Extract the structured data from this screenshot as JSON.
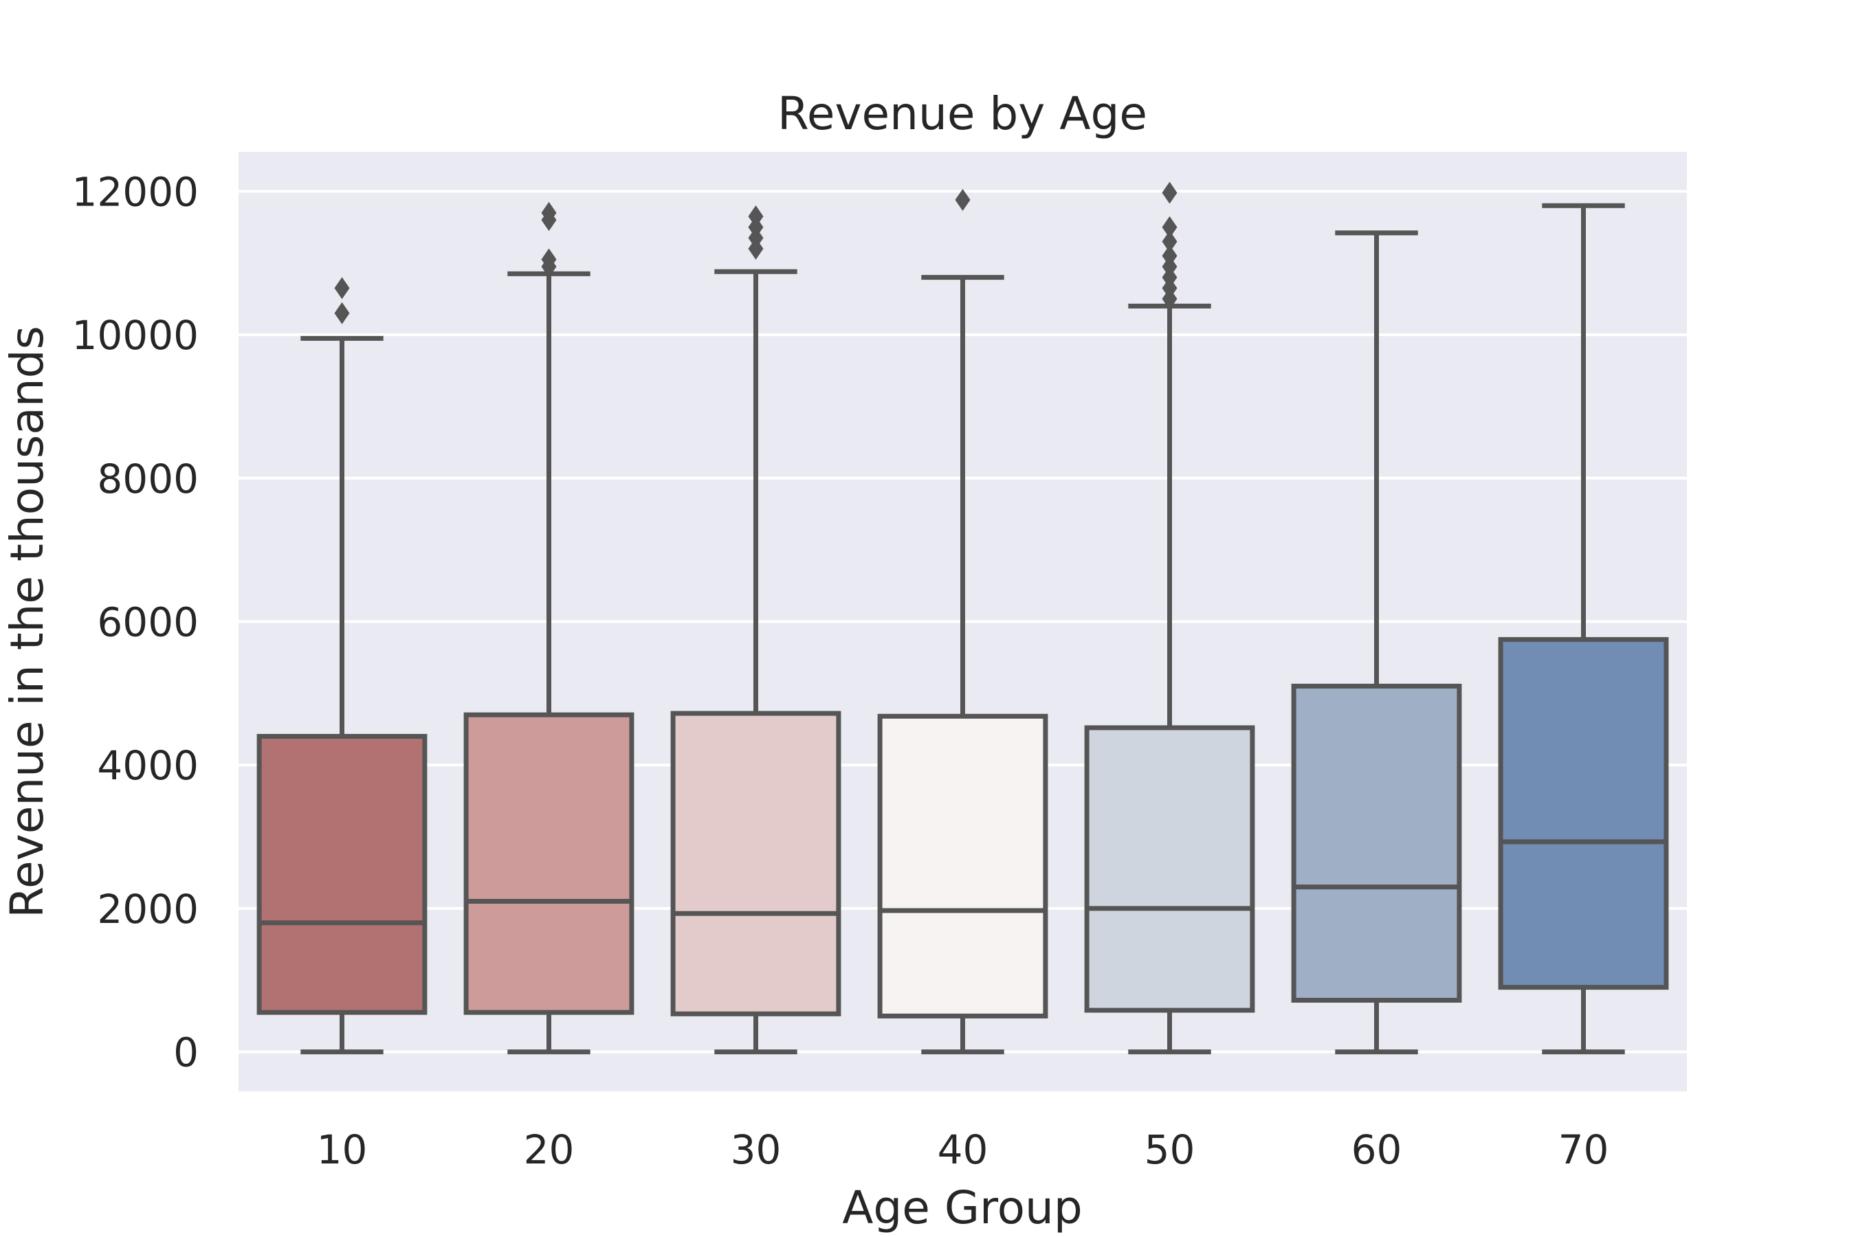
{
  "chart_data": {
    "type": "box",
    "title": "Revenue by Age",
    "xlabel": "Age Group",
    "ylabel": "Revenue in the thousands",
    "ylim": [
      -550,
      12550
    ],
    "yticks": [
      0,
      2000,
      4000,
      6000,
      8000,
      10000,
      12000
    ],
    "grid": true,
    "legend": "none",
    "colors": {
      "plot_background": "#eaeaf2",
      "grid": "#ffffff",
      "box_edge": "#555555",
      "text": "#262626"
    },
    "categories": [
      "10",
      "20",
      "30",
      "40",
      "50",
      "60",
      "70"
    ],
    "boxes": [
      {
        "category": "10",
        "whisker_low": 0,
        "q1": 550,
        "median": 1800,
        "q3": 4400,
        "whisker_high": 9950,
        "outliers": [
          10300,
          10650
        ],
        "color": "#b27271"
      },
      {
        "category": "20",
        "whisker_low": 0,
        "q1": 550,
        "median": 2100,
        "q3": 4700,
        "whisker_high": 10850,
        "outliers": [
          10950,
          11050,
          11600,
          11700
        ],
        "color": "#cd9c9a"
      },
      {
        "category": "30",
        "whisker_low": 0,
        "q1": 530,
        "median": 1930,
        "q3": 4720,
        "whisker_high": 10880,
        "outliers": [
          11200,
          11350,
          11500,
          11650
        ],
        "color": "#e4cbcb"
      },
      {
        "category": "40",
        "whisker_low": 0,
        "q1": 500,
        "median": 1970,
        "q3": 4680,
        "whisker_high": 10800,
        "outliers": [
          11880
        ],
        "color": "#f7f3f3"
      },
      {
        "category": "50",
        "whisker_low": 0,
        "q1": 580,
        "median": 2000,
        "q3": 4520,
        "whisker_high": 10400,
        "outliers": [
          10500,
          10650,
          10800,
          10950,
          11100,
          11300,
          11500,
          11980
        ],
        "color": "#cfd5df"
      },
      {
        "category": "60",
        "whisker_low": 0,
        "q1": 720,
        "median": 2300,
        "q3": 5100,
        "whisker_high": 11420,
        "outliers": [],
        "color": "#9eafc6"
      },
      {
        "category": "70",
        "whisker_low": 0,
        "q1": 900,
        "median": 2930,
        "q3": 5750,
        "whisker_high": 11800,
        "outliers": [],
        "color": "#718db4"
      }
    ]
  }
}
